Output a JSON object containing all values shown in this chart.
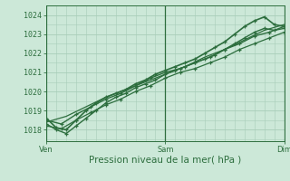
{
  "bg_color": "#cce8d8",
  "grid_color": "#a8cdb8",
  "line_color": "#2d6e3e",
  "marker_color": "#2d6e3e",
  "xlabel": "Pression niveau de la mer( hPa )",
  "xlabel_fontsize": 7.5,
  "tick_label_color": "#2d6e3e",
  "tick_fontsize": 6,
  "yticks": [
    1018,
    1019,
    1020,
    1021,
    1022,
    1023,
    1024
  ],
  "ylim": [
    1017.4,
    1024.5
  ],
  "xlim": [
    0,
    48
  ],
  "xtick_positions": [
    0,
    24,
    48
  ],
  "xtick_labels": [
    "Ven",
    "Sam",
    "Dim"
  ],
  "vline_positions": [
    0,
    24,
    48
  ],
  "series": [
    {
      "x": [
        0,
        2,
        4,
        6,
        8,
        10,
        12,
        14,
        16,
        18,
        20,
        22,
        24,
        26,
        28,
        30,
        32,
        34,
        36,
        38,
        40,
        42,
        44,
        46,
        48
      ],
      "y": [
        1018.6,
        1018.1,
        1018.0,
        1018.5,
        1019.0,
        1019.4,
        1019.7,
        1019.9,
        1020.1,
        1020.4,
        1020.6,
        1020.9,
        1021.1,
        1021.3,
        1021.5,
        1021.7,
        1022.0,
        1022.3,
        1022.6,
        1023.0,
        1023.4,
        1023.7,
        1023.9,
        1023.5,
        1023.4
      ],
      "marker": "+",
      "lw": 1.2
    },
    {
      "x": [
        0,
        2,
        4,
        6,
        8,
        10,
        12,
        14,
        16,
        18,
        20,
        22,
        24,
        26,
        28,
        30,
        32,
        34,
        36,
        38,
        40,
        42,
        44,
        46,
        48
      ],
      "y": [
        1018.3,
        1018.0,
        1017.8,
        1018.2,
        1018.6,
        1019.0,
        1019.4,
        1019.7,
        1019.9,
        1020.2,
        1020.4,
        1020.6,
        1020.9,
        1021.1,
        1021.3,
        1021.5,
        1021.7,
        1021.9,
        1022.2,
        1022.5,
        1022.8,
        1023.1,
        1023.3,
        1023.2,
        1023.3
      ],
      "marker": "+",
      "lw": 1.0
    },
    {
      "x": [
        0,
        3,
        6,
        9,
        12,
        15,
        18,
        21,
        24,
        27,
        30,
        33,
        36,
        39,
        42,
        45,
        48
      ],
      "y": [
        1018.5,
        1018.3,
        1018.8,
        1019.2,
        1019.6,
        1019.9,
        1020.3,
        1020.7,
        1021.0,
        1021.2,
        1021.5,
        1021.8,
        1022.2,
        1022.5,
        1022.9,
        1023.1,
        1023.4
      ],
      "marker": "+",
      "lw": 1.0
    },
    {
      "x": [
        0,
        3,
        6,
        9,
        12,
        15,
        18,
        21,
        24,
        27,
        30,
        33,
        36,
        39,
        42,
        45,
        48
      ],
      "y": [
        1018.2,
        1018.05,
        1018.5,
        1018.9,
        1019.3,
        1019.6,
        1020.0,
        1020.3,
        1020.7,
        1021.0,
        1021.2,
        1021.5,
        1021.8,
        1022.2,
        1022.5,
        1022.8,
        1023.1
      ],
      "marker": "+",
      "lw": 0.9
    },
    {
      "x": [
        0,
        4,
        8,
        12,
        16,
        20,
        24,
        28,
        32,
        36,
        40,
        44,
        48
      ],
      "y": [
        1018.4,
        1018.7,
        1019.2,
        1019.7,
        1020.1,
        1020.5,
        1020.9,
        1021.3,
        1021.8,
        1022.2,
        1022.7,
        1023.2,
        1023.5
      ],
      "marker": null,
      "lw": 0.9
    }
  ]
}
